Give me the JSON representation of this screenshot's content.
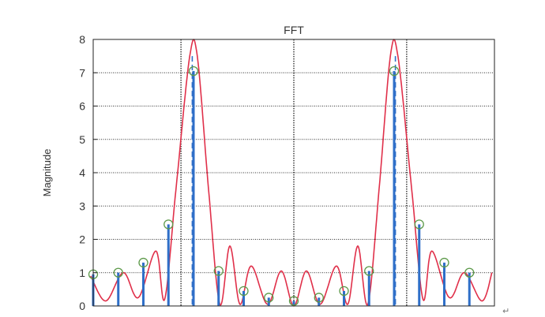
{
  "chart_data": {
    "type": "line",
    "title": "FFT",
    "xlabel": "",
    "ylabel": "Magnitude",
    "xlim": [
      0,
      16
    ],
    "ylim": [
      0,
      8
    ],
    "y_ticks": [
      "0",
      "1",
      "2",
      "3",
      "4",
      "5",
      "6",
      "7",
      "8"
    ],
    "grid": "horizontal-dotted",
    "vertical_dashed_lines_x": [
      3.95,
      12.05
    ],
    "vertical_dotted_lines_x": [
      3.5,
      8,
      12.5
    ],
    "stem_series": {
      "color": "#2f6fc8",
      "marker_color": "#5d9a4a",
      "x": [
        0,
        1,
        2,
        3,
        4,
        5,
        6,
        7,
        8,
        9,
        10,
        11,
        12,
        13,
        14,
        15
      ],
      "values": [
        0.95,
        1.0,
        1.3,
        2.45,
        7.05,
        1.05,
        0.45,
        0.25,
        0.15,
        0.25,
        0.45,
        1.05,
        7.05,
        2.45,
        1.3,
        1.0
      ]
    },
    "line_series": {
      "color": "#e0304a",
      "x": [
        -0.1,
        0.5,
        1.2,
        1.8,
        2.5,
        2.85,
        3.3,
        3.85,
        4.15,
        4.6,
        5.05,
        5.45,
        5.85,
        6.3,
        6.95,
        7.5,
        8.0,
        8.5,
        9.05,
        9.7,
        10.15,
        10.55,
        10.95,
        11.4,
        11.85,
        12.15,
        12.7,
        13.15,
        13.5,
        14.2,
        14.8,
        15.5,
        15.9
      ],
      "values": [
        0.9,
        0.15,
        1.0,
        0.25,
        1.65,
        0.2,
        3.5,
        7.5,
        7.5,
        3.5,
        0.05,
        1.8,
        0.05,
        1.2,
        0.05,
        1.05,
        0.0,
        1.05,
        0.05,
        1.2,
        0.05,
        1.8,
        0.05,
        3.5,
        7.5,
        7.5,
        3.5,
        0.2,
        1.65,
        0.25,
        1.0,
        0.15,
        1.0
      ]
    },
    "end_mark": "↵"
  }
}
